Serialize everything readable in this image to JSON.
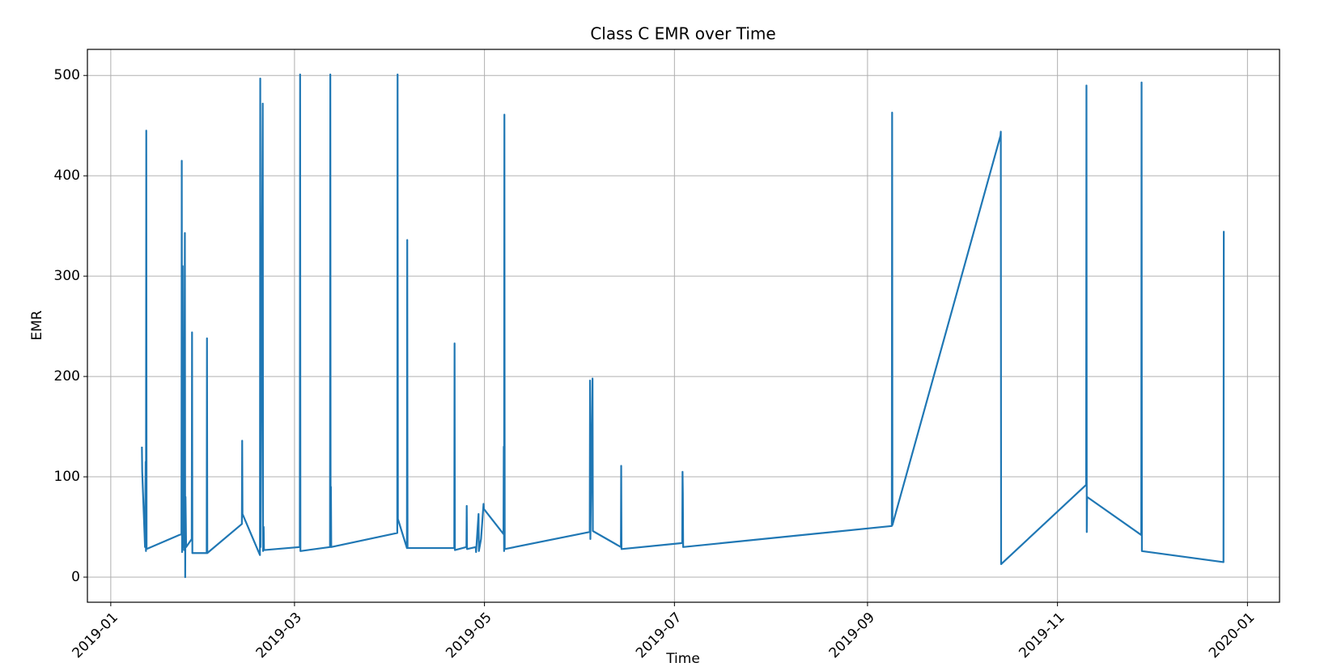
{
  "chart_data": {
    "type": "line",
    "title": "Class C EMR over Time",
    "x_label": "Time",
    "y_label": "EMR",
    "x": [
      10,
      10.1,
      11,
      11.2,
      11.3,
      11.4,
      11.5,
      22.7,
      22.8,
      22.9,
      23.1,
      23.2,
      23.4,
      23.5,
      23.8,
      23.9,
      24,
      24.2,
      26,
      26.1,
      26.2,
      30.8,
      30.9,
      31,
      42.1,
      42.2,
      42.3,
      47.9,
      48,
      48.1,
      48.8,
      48.9,
      49.1,
      49.2,
      60.7,
      60.8,
      60.9,
      70.4,
      70.5,
      70.6,
      70.7,
      70.8,
      92,
      92.1,
      92.2,
      95.1,
      95.2,
      95.3,
      110.3,
      110.4,
      110.5,
      114.2,
      114.3,
      114.4,
      117.2,
      117.3,
      118.1,
      118.2,
      118.9,
      119.7,
      119.8,
      126.1,
      126.2,
      126.3,
      126.4,
      126.5,
      153.8,
      153.9,
      154,
      154.7,
      154.8,
      163.8,
      163.9,
      164,
      183.5,
      183.6,
      183.7,
      183.8,
      250.8,
      250.9,
      251,
      285.7,
      285.8,
      285.9,
      313.2,
      313.3,
      313.4,
      313.5,
      330.9,
      331,
      331.1,
      357.3,
      357.4
    ],
    "values": [
      130,
      105,
      30,
      115,
      26,
      445,
      28,
      43,
      415,
      25,
      310,
      30,
      126,
      27,
      343,
      0,
      80,
      30,
      38,
      244,
      24,
      24,
      238,
      24,
      53,
      136,
      63,
      22,
      497,
      30,
      472,
      26,
      50,
      27,
      30,
      501,
      26,
      30,
      501,
      30,
      90,
      30,
      44,
      501,
      58,
      29,
      336,
      29,
      29,
      233,
      27,
      30,
      71,
      28,
      30,
      25,
      63,
      26,
      38,
      73,
      68,
      43,
      130,
      26,
      461,
      28,
      45,
      196,
      38,
      198,
      46,
      30,
      111,
      28,
      34,
      105,
      84,
      30,
      51,
      463,
      52,
      440,
      444,
      13,
      92,
      490,
      45,
      80,
      42,
      493,
      26,
      15,
      345
    ],
    "color": "#1f77b4",
    "xlim": [
      -7.5,
      375.3
    ],
    "ylim": [
      -25,
      526
    ],
    "xticks": [
      {
        "value": 0,
        "label": "2019-01"
      },
      {
        "value": 59,
        "label": "2019-03"
      },
      {
        "value": 120,
        "label": "2019-05"
      },
      {
        "value": 181,
        "label": "2019-07"
      },
      {
        "value": 243,
        "label": "2019-09"
      },
      {
        "value": 304,
        "label": "2019-11"
      },
      {
        "value": 365,
        "label": "2020-01"
      }
    ],
    "yticks": [
      0,
      100,
      200,
      300,
      400,
      500
    ],
    "grid": true
  }
}
